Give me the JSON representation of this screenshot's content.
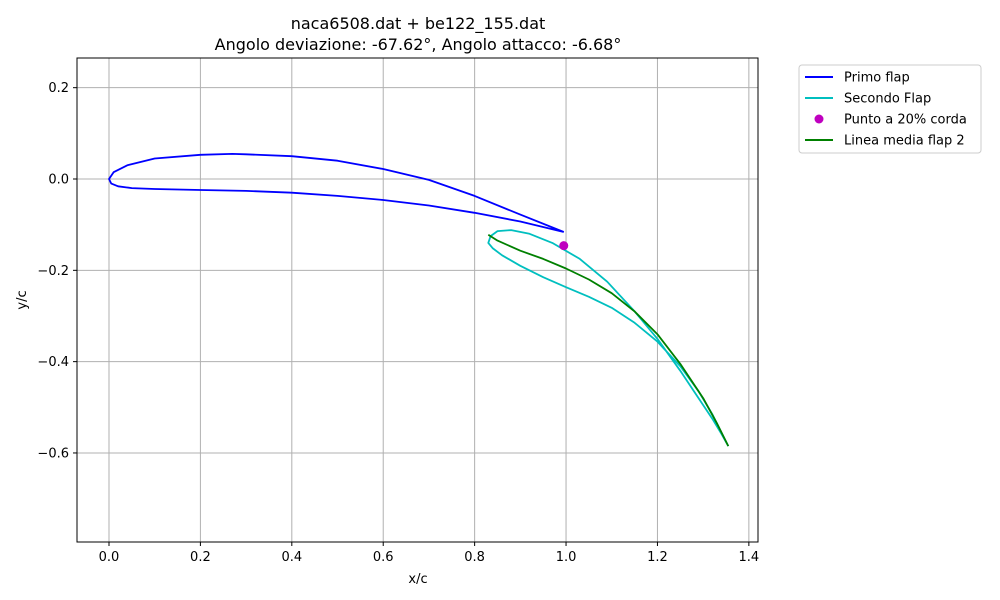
{
  "chart_data": {
    "type": "line",
    "title": "naca6508.dat + be122_155.dat",
    "subtitle": "Angolo deviazione: -67.62°, Angolo attacco: -6.68°",
    "xlabel": "x/c",
    "ylabel": "y/c",
    "xlim": [
      -0.07,
      1.42
    ],
    "ylim": [
      -0.795,
      0.265
    ],
    "xticks": [
      0.0,
      0.2,
      0.4,
      0.6,
      0.8,
      1.0,
      1.2,
      1.4
    ],
    "xtick_labels": [
      "0.0",
      "0.2",
      "0.4",
      "0.6",
      "0.8",
      "1.0",
      "1.2",
      "1.4"
    ],
    "yticks": [
      0.2,
      0.0,
      -0.2,
      -0.4,
      -0.6
    ],
    "ytick_labels": [
      "0.2",
      "0.0",
      "−0.2",
      "−0.4",
      "−0.6"
    ],
    "grid": true,
    "legend_placement": "outside-top-right",
    "series": [
      {
        "name": "Primo flap",
        "color": "#0000ff",
        "style": "line",
        "x": [
          0.995,
          0.9,
          0.8,
          0.7,
          0.6,
          0.5,
          0.4,
          0.3,
          0.27,
          0.2,
          0.1,
          0.04,
          0.01,
          0.0,
          0.005,
          0.02,
          0.05,
          0.1,
          0.2,
          0.3,
          0.4,
          0.5,
          0.6,
          0.7,
          0.8,
          0.9,
          0.995
        ],
        "y": [
          -0.116,
          -0.078,
          -0.037,
          -0.002,
          0.022,
          0.04,
          0.05,
          0.054,
          0.055,
          0.053,
          0.045,
          0.03,
          0.015,
          0.0,
          -0.01,
          -0.016,
          -0.02,
          -0.022,
          -0.024,
          -0.026,
          -0.03,
          -0.037,
          -0.046,
          -0.058,
          -0.074,
          -0.093,
          -0.116
        ]
      },
      {
        "name": "Secondo Flap",
        "color": "#00bfbf",
        "style": "line",
        "x": [
          1.355,
          1.34,
          1.32,
          1.29,
          1.25,
          1.2,
          1.15,
          1.1,
          1.05,
          1.0,
          0.95,
          0.9,
          0.86,
          0.84,
          0.83,
          0.835,
          0.85,
          0.88,
          0.92,
          0.97,
          1.03,
          1.09,
          1.15,
          1.2,
          1.25,
          1.29,
          1.32,
          1.34,
          1.355
        ],
        "y": [
          -0.585,
          -0.555,
          -0.515,
          -0.465,
          -0.41,
          -0.356,
          -0.315,
          -0.282,
          -0.258,
          -0.237,
          -0.215,
          -0.19,
          -0.167,
          -0.152,
          -0.14,
          -0.125,
          -0.114,
          -0.112,
          -0.12,
          -0.14,
          -0.175,
          -0.225,
          -0.29,
          -0.35,
          -0.42,
          -0.48,
          -0.525,
          -0.558,
          -0.585
        ]
      },
      {
        "name": "Punto a 20% corda",
        "color": "#bf00bf",
        "style": "marker",
        "x": [
          0.995
        ],
        "y": [
          -0.146
        ]
      },
      {
        "name": "Linea media flap 2",
        "color": "#008000",
        "style": "line",
        "x": [
          0.83,
          0.85,
          0.9,
          0.95,
          1.0,
          1.05,
          1.1,
          1.15,
          1.2,
          1.25,
          1.3,
          1.33,
          1.355
        ],
        "y": [
          -0.122,
          -0.135,
          -0.157,
          -0.175,
          -0.196,
          -0.22,
          -0.25,
          -0.29,
          -0.34,
          -0.405,
          -0.48,
          -0.535,
          -0.585
        ]
      }
    ]
  }
}
